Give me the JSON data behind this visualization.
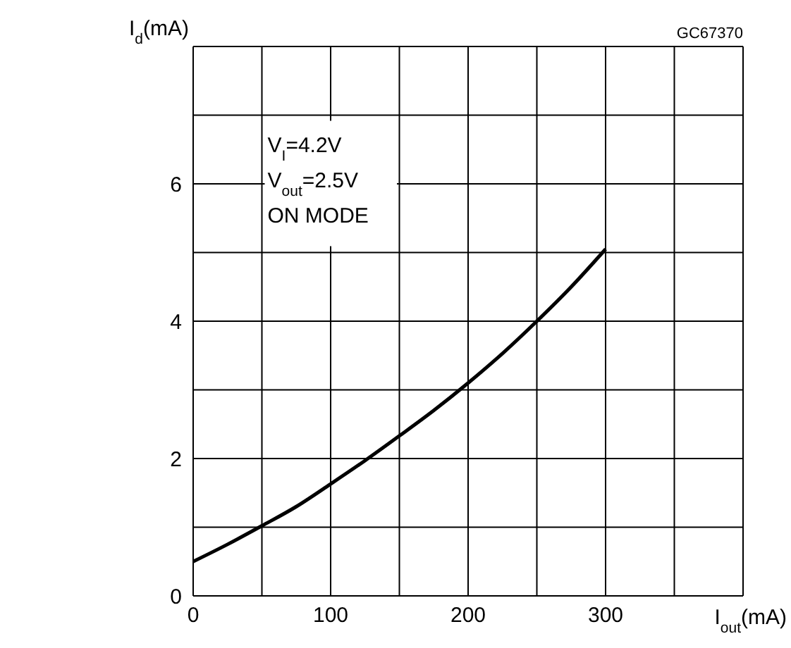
{
  "chart_data": {
    "type": "line",
    "xlabel": "I$_{out}$(mA)",
    "ylabel": "I$_{d}$(mA)",
    "annotations": [
      "GC67370",
      "V$_{I}$=4.2V",
      "V$_{out}$=2.5V",
      "ON MODE"
    ],
    "x": [
      0,
      25,
      50,
      75,
      100,
      125,
      150,
      175,
      200,
      225,
      250,
      275,
      300
    ],
    "series": [
      {
        "color": "#000000",
        "values": [
          0.5,
          0.75,
          1.02,
          1.3,
          1.63,
          1.97,
          2.33,
          2.7,
          3.1,
          3.53,
          4.0,
          4.5,
          5.05
        ]
      }
    ],
    "xlim": [
      0,
      400
    ],
    "xticks": [
      0,
      {
        "value": 50,
        "label": null
      },
      100,
      {
        "value": 150,
        "label": null
      },
      200,
      {
        "value": 250,
        "label": null
      },
      300,
      {
        "value": 350,
        "label": null
      },
      {
        "value": 400,
        "label": null
      }
    ],
    "ylim": [
      0,
      8
    ],
    "yticks": [
      0,
      {
        "value": 1,
        "label": null
      },
      2,
      {
        "value": 3,
        "label": null
      },
      4,
      {
        "value": 5,
        "label": null
      },
      6,
      {
        "value": 7,
        "label": null
      },
      {
        "value": 8,
        "label": null
      }
    ],
    "grid": true,
    "marker": "none",
    "line_style": "solid"
  }
}
